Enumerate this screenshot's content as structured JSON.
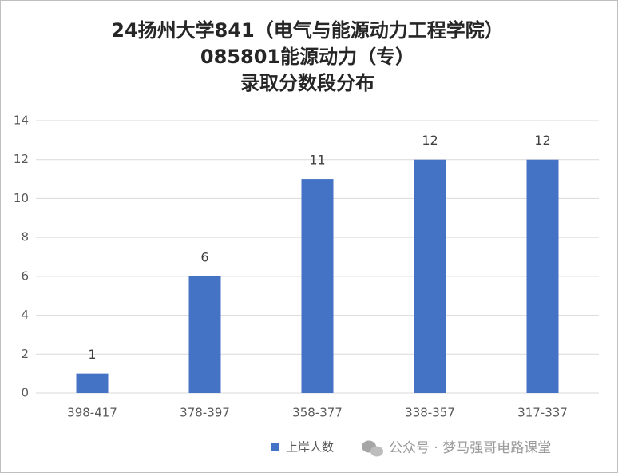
{
  "chart_data": {
    "type": "bar",
    "title": [
      "24扬州大学841（电气与能源动力工程学院）",
      "085801能源动力（专）",
      "录取分数段分布"
    ],
    "categories": [
      "398-417",
      "378-397",
      "358-377",
      "338-357",
      "317-337"
    ],
    "series": [
      {
        "name": "上岸人数",
        "color": "#4472c4",
        "values": [
          1,
          6,
          11,
          12,
          12
        ]
      }
    ],
    "ylim": [
      0,
      14
    ],
    "yticks": [
      0,
      2,
      4,
      6,
      8,
      10,
      12,
      14
    ],
    "grid": true,
    "legend": "bottom",
    "watermark": "公众号 · 梦马强哥电路课堂"
  }
}
